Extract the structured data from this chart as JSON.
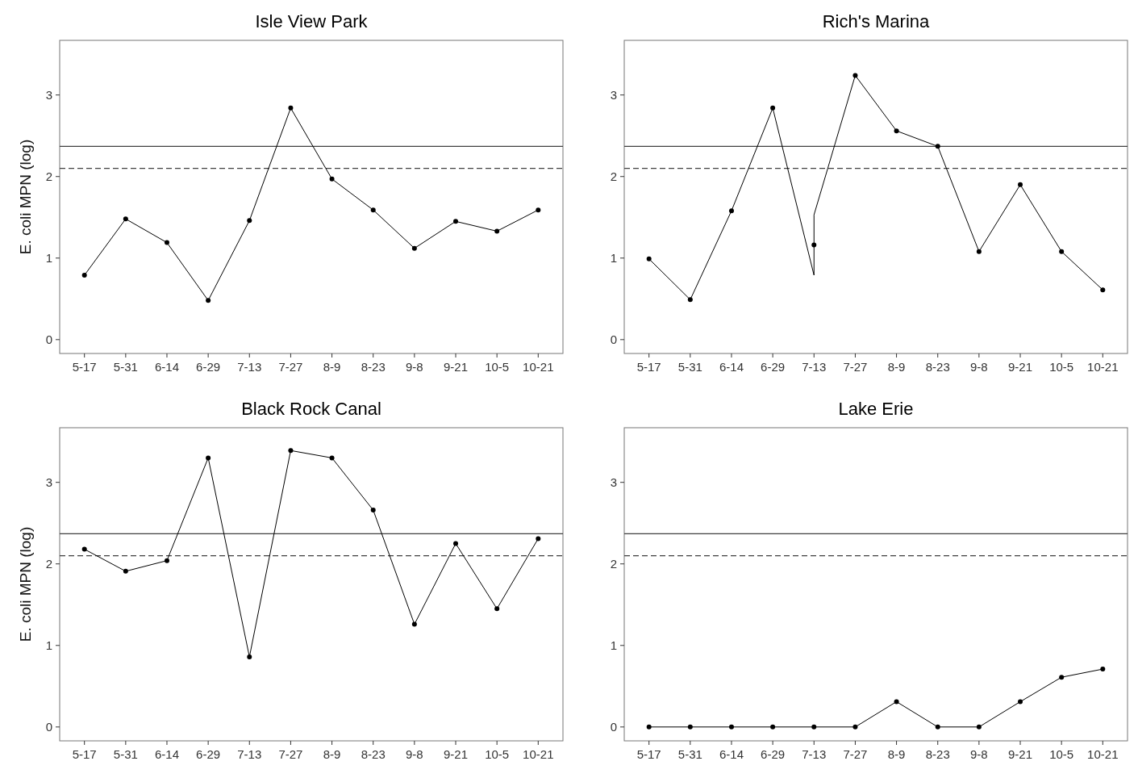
{
  "chart_data": [
    {
      "type": "line",
      "title": "Isle View Park",
      "ylabel": "E. coli MPN (log)",
      "categories": [
        "5-17",
        "5-31",
        "6-14",
        "6-29",
        "7-13",
        "7-27",
        "8-9",
        "8-23",
        "9-8",
        "9-21",
        "10-5",
        "10-21"
      ],
      "ylim": [
        -0.17,
        3.67
      ],
      "yticks": [
        0,
        1,
        2,
        3
      ],
      "grid": false,
      "marker": "circle",
      "line_style": "solid",
      "series": [
        {
          "color": "#000000",
          "values": [
            0.79,
            1.48,
            1.19,
            0.48,
            1.46,
            2.84,
            1.97,
            1.59,
            1.12,
            1.45,
            1.33,
            1.59
          ]
        }
      ],
      "ref_lines": [
        {
          "axis": "y",
          "value": 2.37,
          "color": "#404040",
          "line_style": "solid"
        },
        {
          "axis": "y",
          "value": 2.1,
          "color": "#404040",
          "line_style": "dashed"
        }
      ]
    },
    {
      "type": "line",
      "title": "Rich's Marina",
      "categories": [
        "5-17",
        "5-31",
        "6-14",
        "6-29",
        "7-13",
        "7-27",
        "8-9",
        "8-23",
        "9-8",
        "9-21",
        "10-5",
        "10-21"
      ],
      "ylim": [
        -0.17,
        3.67
      ],
      "yticks": [
        0,
        1,
        2,
        3
      ],
      "grid": false,
      "line_style": "solid",
      "series": [
        {
          "marker": "none",
          "color": "#000000",
          "x": [
            "5-17",
            "5-31",
            "6-14",
            "6-29",
            "7-13",
            "7-13",
            "7-27",
            "8-9",
            "8-23",
            "9-8",
            "9-21",
            "10-5",
            "10-21"
          ],
          "values": [
            0.99,
            0.49,
            1.58,
            2.84,
            0.79,
            1.53,
            3.24,
            2.56,
            2.37,
            1.08,
            1.9,
            1.08,
            0.61
          ]
        },
        {
          "type": "scatter",
          "marker": "circle",
          "color": "#000000",
          "values": [
            0.99,
            0.49,
            1.58,
            2.84,
            1.16,
            3.24,
            2.56,
            2.37,
            1.08,
            1.9,
            1.08,
            0.61
          ]
        }
      ],
      "ref_lines": [
        {
          "axis": "y",
          "value": 2.37,
          "color": "#404040",
          "line_style": "solid"
        },
        {
          "axis": "y",
          "value": 2.1,
          "color": "#404040",
          "line_style": "dashed"
        }
      ]
    },
    {
      "type": "line",
      "title": "Black Rock Canal",
      "ylabel": "E. coli MPN (log)",
      "categories": [
        "5-17",
        "5-31",
        "6-14",
        "6-29",
        "7-13",
        "7-27",
        "8-9",
        "8-23",
        "9-8",
        "9-21",
        "10-5",
        "10-21"
      ],
      "ylim": [
        -0.17,
        3.67
      ],
      "yticks": [
        0,
        1,
        2,
        3
      ],
      "grid": false,
      "marker": "circle",
      "line_style": "solid",
      "series": [
        {
          "color": "#000000",
          "values": [
            2.18,
            1.91,
            2.04,
            3.3,
            0.86,
            3.39,
            3.3,
            2.66,
            1.26,
            2.25,
            1.45,
            2.31
          ]
        }
      ],
      "ref_lines": [
        {
          "axis": "y",
          "value": 2.37,
          "color": "#404040",
          "line_style": "solid"
        },
        {
          "axis": "y",
          "value": 2.1,
          "color": "#404040",
          "line_style": "dashed"
        }
      ]
    },
    {
      "type": "line",
      "title": "Lake Erie",
      "categories": [
        "5-17",
        "5-31",
        "6-14",
        "6-29",
        "7-13",
        "7-27",
        "8-9",
        "8-23",
        "9-8",
        "9-21",
        "10-5",
        "10-21"
      ],
      "ylim": [
        -0.17,
        3.67
      ],
      "yticks": [
        0,
        1,
        2,
        3
      ],
      "grid": false,
      "marker": "circle",
      "line_style": "solid",
      "series": [
        {
          "color": "#000000",
          "values": [
            0,
            0,
            0,
            0,
            0,
            0,
            0.31,
            0,
            0,
            0.31,
            0.61,
            0.71
          ]
        }
      ],
      "ref_lines": [
        {
          "axis": "y",
          "value": 2.37,
          "color": "#404040",
          "line_style": "solid"
        },
        {
          "axis": "y",
          "value": 2.1,
          "color": "#404040",
          "line_style": "dashed"
        }
      ]
    }
  ]
}
